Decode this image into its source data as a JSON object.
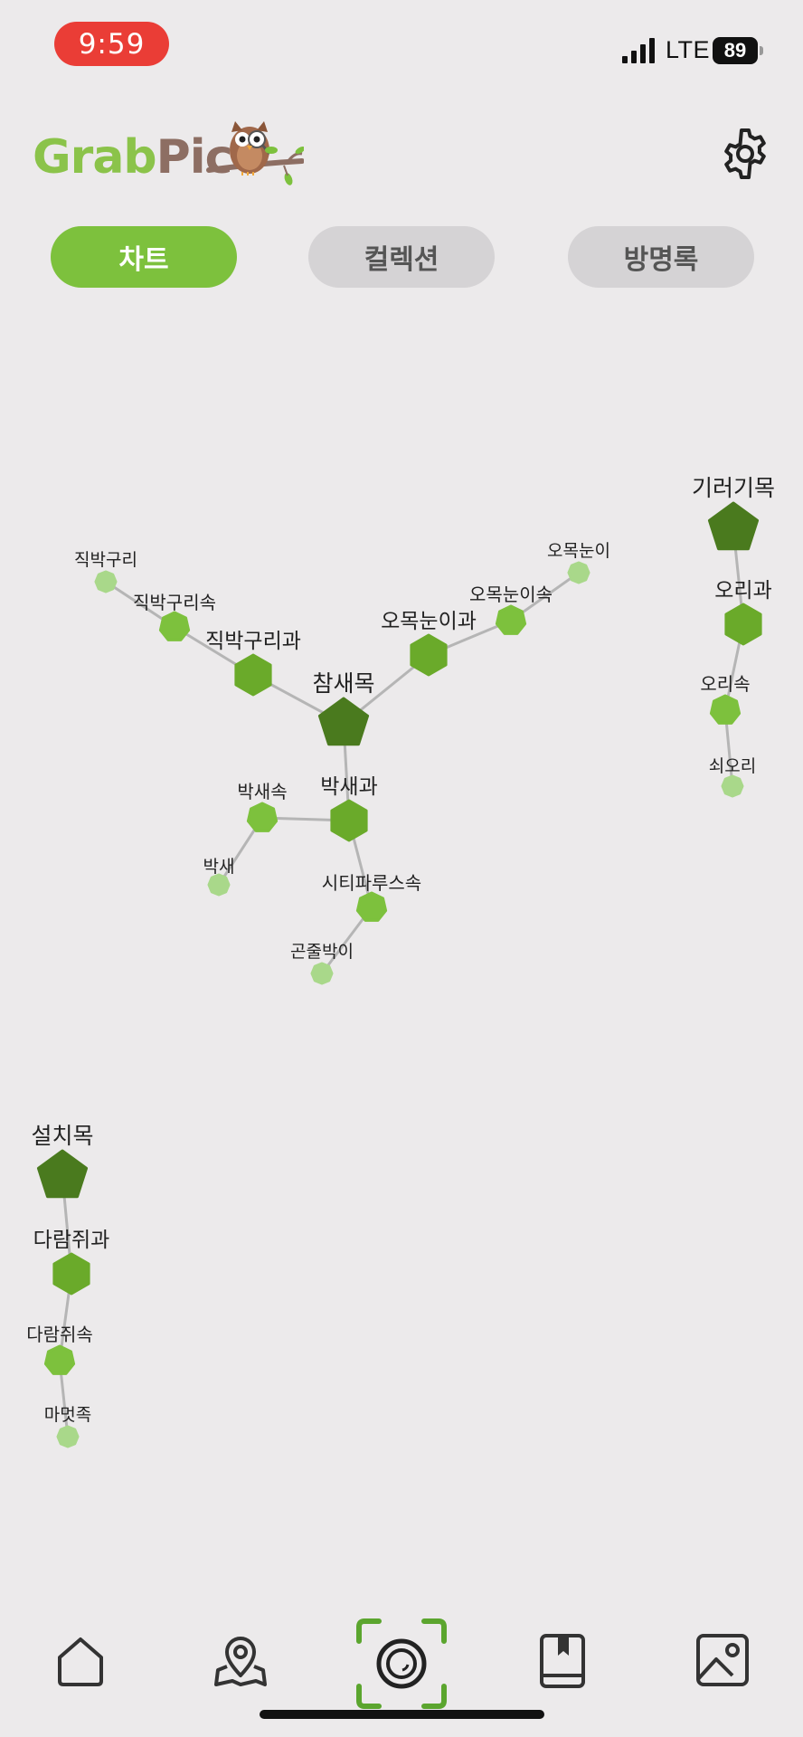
{
  "status_bar": {
    "time": "9:59",
    "network": "LTE",
    "battery": "89"
  },
  "header": {
    "logo_grab": "Grab",
    "logo_pic": "Pic"
  },
  "tabs": [
    {
      "label": "차트",
      "active": true
    },
    {
      "label": "컬렉션",
      "active": false
    },
    {
      "label": "방명록",
      "active": false
    }
  ],
  "taxonomy": {
    "nodes": [
      {
        "id": "passeriformes",
        "label": "참새목",
        "rank": "order"
      },
      {
        "id": "aegithalidae",
        "label": "직박구리과",
        "rank": "family"
      },
      {
        "id": "pycnonotus",
        "label": "직박구리속",
        "rank": "genus"
      },
      {
        "id": "bulbul",
        "label": "직박구리",
        "rank": "species"
      },
      {
        "id": "zosteropidae",
        "label": "오목눈이과",
        "rank": "family"
      },
      {
        "id": "aegithalos",
        "label": "오목눈이속",
        "rank": "genus"
      },
      {
        "id": "tit",
        "label": "오목눈이",
        "rank": "species"
      },
      {
        "id": "paridae",
        "label": "박새과",
        "rank": "family"
      },
      {
        "id": "parus",
        "label": "박새속",
        "rank": "genus"
      },
      {
        "id": "greattit",
        "label": "박새",
        "rank": "species"
      },
      {
        "id": "sittiparus",
        "label": "시티파루스속",
        "rank": "genus"
      },
      {
        "id": "variedtit",
        "label": "곤줄박이",
        "rank": "species"
      },
      {
        "id": "anseriformes",
        "label": "기러기목",
        "rank": "order"
      },
      {
        "id": "anatidae",
        "label": "오리과",
        "rank": "family"
      },
      {
        "id": "anas",
        "label": "오리속",
        "rank": "genus"
      },
      {
        "id": "mallard",
        "label": "쇠오리",
        "rank": "species"
      },
      {
        "id": "rodentia",
        "label": "설치목",
        "rank": "order"
      },
      {
        "id": "sciuridae",
        "label": "다람쥐과",
        "rank": "family"
      },
      {
        "id": "tamias",
        "label": "다람쥐속",
        "rank": "genus"
      },
      {
        "id": "tribe",
        "label": "마멋족",
        "rank": "species"
      }
    ],
    "edges": [
      [
        "passeriformes",
        "aegithalidae"
      ],
      [
        "aegithalidae",
        "pycnonotus"
      ],
      [
        "pycnonotus",
        "bulbul"
      ],
      [
        "passeriformes",
        "zosteropidae"
      ],
      [
        "zosteropidae",
        "aegithalos"
      ],
      [
        "aegithalos",
        "tit"
      ],
      [
        "passeriformes",
        "paridae"
      ],
      [
        "paridae",
        "parus"
      ],
      [
        "parus",
        "greattit"
      ],
      [
        "paridae",
        "sittiparus"
      ],
      [
        "sittiparus",
        "variedtit"
      ],
      [
        "anseriformes",
        "anatidae"
      ],
      [
        "anatidae",
        "anas"
      ],
      [
        "anas",
        "mallard"
      ],
      [
        "rodentia",
        "sciuridae"
      ],
      [
        "sciuridae",
        "tamias"
      ],
      [
        "tamias",
        "tribe"
      ]
    ]
  },
  "colors": {
    "order": "#4A7A1E",
    "family": "#6AAA2A",
    "genus": "#7DC13D",
    "species": "#A9D88A",
    "edge": "#B5B5B5",
    "tab_active": "#7DC13D",
    "tab_inactive": "#D5D3D5",
    "time_pill": "#EA3D36",
    "camera_frame": "#5BA52E"
  },
  "bottom_nav": [
    {
      "icon": "home-icon"
    },
    {
      "icon": "map-pin-icon"
    },
    {
      "icon": "camera-icon"
    },
    {
      "icon": "book-icon"
    },
    {
      "icon": "gallery-icon"
    }
  ]
}
